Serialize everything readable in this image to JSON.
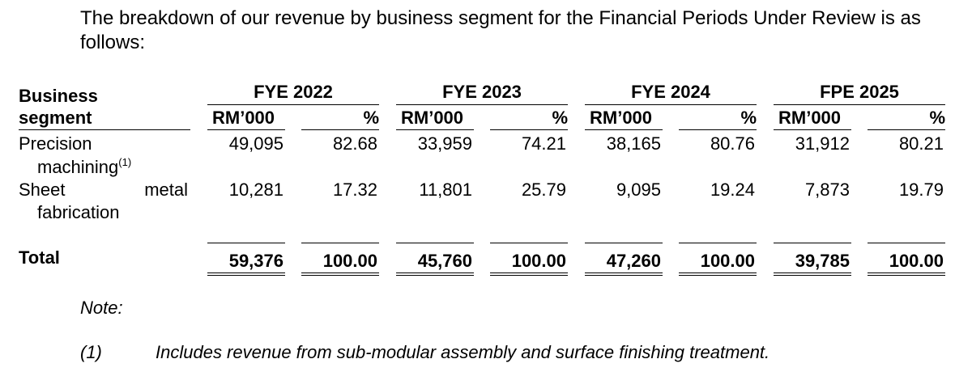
{
  "intro": "The breakdown of our revenue by business segment for the Financial Periods Under Review is as follows:",
  "table": {
    "segment_header_line1": "Business",
    "segment_header_line2": "segment",
    "periods": [
      "FYE 2022",
      "FYE 2023",
      "FYE 2024",
      "FPE 2025"
    ],
    "unit_rm": "RM’000",
    "unit_pct": "%",
    "rows": [
      {
        "label_line1": "Precision",
        "label_line2": "machining",
        "label_sup": "(1)",
        "values": [
          [
            "49,095",
            "82.68"
          ],
          [
            "33,959",
            "74.21"
          ],
          [
            "38,165",
            "80.76"
          ],
          [
            "31,912",
            "80.21"
          ]
        ]
      },
      {
        "label_line1a": "Sheet",
        "label_line1b": "metal",
        "label_line2": "fabrication",
        "values": [
          [
            "10,281",
            "17.32"
          ],
          [
            "11,801",
            "25.79"
          ],
          [
            "9,095",
            "19.24"
          ],
          [
            "7,873",
            "19.79"
          ]
        ]
      }
    ],
    "total": {
      "label": "Total",
      "values": [
        [
          "59,376",
          "100.00"
        ],
        [
          "45,760",
          "100.00"
        ],
        [
          "47,260",
          "100.00"
        ],
        [
          "39,785",
          "100.00"
        ]
      ]
    }
  },
  "note": {
    "heading": "Note:",
    "marker": "(1)",
    "text": "Includes revenue from sub-modular assembly and surface finishing treatment."
  }
}
